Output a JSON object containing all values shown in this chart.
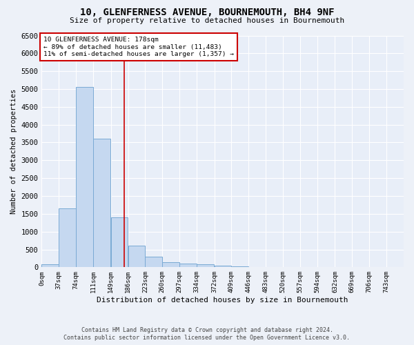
{
  "title": "10, GLENFERNESS AVENUE, BOURNEMOUTH, BH4 9NF",
  "subtitle": "Size of property relative to detached houses in Bournemouth",
  "xlabel": "Distribution of detached houses by size in Bournemouth",
  "ylabel": "Number of detached properties",
  "bar_color": "#c5d8f0",
  "bar_edge_color": "#7aaad4",
  "background_color": "#e8eef8",
  "fig_background_color": "#edf1f8",
  "grid_color": "#ffffff",
  "categories": [
    "0sqm",
    "37sqm",
    "74sqm",
    "111sqm",
    "149sqm",
    "186sqm",
    "223sqm",
    "260sqm",
    "297sqm",
    "334sqm",
    "372sqm",
    "409sqm",
    "446sqm",
    "483sqm",
    "520sqm",
    "557sqm",
    "594sqm",
    "632sqm",
    "669sqm",
    "706sqm",
    "743sqm"
  ],
  "values": [
    75,
    1650,
    5050,
    3600,
    1400,
    600,
    290,
    140,
    110,
    75,
    50,
    25,
    10,
    0,
    0,
    0,
    0,
    0,
    0,
    0,
    0
  ],
  "bin_edges": [
    0,
    37,
    74,
    111,
    149,
    186,
    223,
    260,
    297,
    334,
    372,
    409,
    446,
    483,
    520,
    557,
    594,
    632,
    669,
    706,
    743,
    780
  ],
  "property_size": 178,
  "red_line_color": "#cc0000",
  "annotation_text": "10 GLENFERNESS AVENUE: 178sqm\n← 89% of detached houses are smaller (11,483)\n11% of semi-detached houses are larger (1,357) →",
  "annotation_box_color": "#ffffff",
  "annotation_border_color": "#cc0000",
  "footer_line1": "Contains HM Land Registry data © Crown copyright and database right 2024.",
  "footer_line2": "Contains public sector information licensed under the Open Government Licence v3.0.",
  "ylim": [
    0,
    6500
  ],
  "figsize": [
    6.0,
    5.0
  ],
  "dpi": 100
}
